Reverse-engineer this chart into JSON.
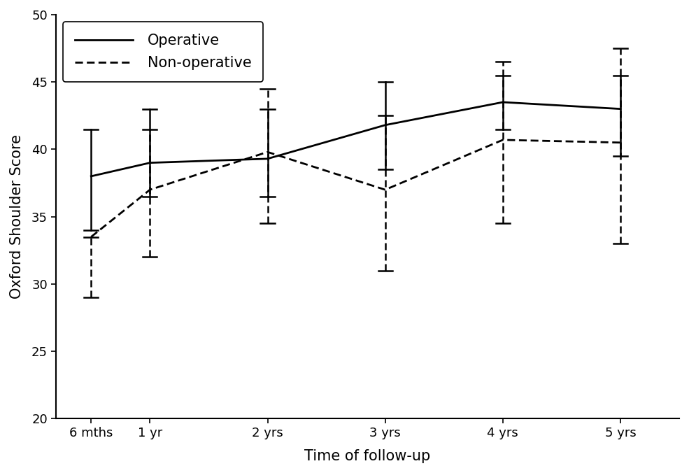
{
  "x_positions": [
    0.5,
    1.0,
    2.0,
    3.0,
    4.0,
    5.0
  ],
  "x_labels": [
    "6 mths",
    "1 yr",
    "2 yrs",
    "3 yrs",
    "4 yrs",
    "5 yrs"
  ],
  "operative_mean": [
    38.0,
    39.0,
    39.3,
    41.8,
    43.5,
    43.0
  ],
  "operative_ci_low": [
    34.0,
    36.5,
    36.5,
    38.5,
    41.5,
    39.5
  ],
  "operative_ci_high": [
    41.5,
    43.0,
    43.0,
    45.0,
    45.5,
    45.5
  ],
  "nonoperative_mean": [
    33.5,
    37.0,
    39.8,
    37.0,
    40.7,
    40.5
  ],
  "nonoperative_ci_low": [
    29.0,
    32.0,
    34.5,
    31.0,
    34.5,
    33.0
  ],
  "nonoperative_ci_high": [
    33.5,
    41.5,
    44.5,
    42.5,
    46.5,
    47.5
  ],
  "ylim": [
    20,
    50
  ],
  "yticks": [
    20,
    25,
    30,
    35,
    40,
    45,
    50
  ],
  "xlim": [
    0.2,
    5.5
  ],
  "ylabel": "Oxford Shoulder Score",
  "xlabel": "Time of follow-up",
  "legend_operative": "Operative",
  "legend_nonoperative": "Non-operative",
  "line_color": "#000000",
  "background_color": "#ffffff",
  "linewidth": 2.0,
  "capwidth": 0.06,
  "op_eb_linewidth": 1.8,
  "nop_eb_linewidth": 1.8
}
